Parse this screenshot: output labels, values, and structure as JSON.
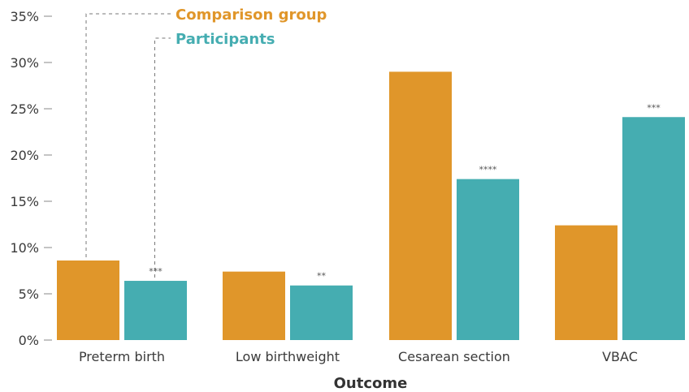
{
  "chart_data": {
    "type": "bar",
    "title": "",
    "xlabel": "Outcome",
    "ylabel": "",
    "ylim": [
      0,
      35
    ],
    "ytick_step": 5,
    "ytick_suffix": "%",
    "grid": false,
    "legend_placement": "top-left",
    "categories": [
      "Preterm birth",
      "Low birthweight",
      "Cesarean section",
      "VBAC"
    ],
    "series": [
      {
        "name": "Comparison group",
        "color": "#E0962A",
        "values": [
          8.6,
          7.4,
          29.0,
          12.4
        ]
      },
      {
        "name": "Participants",
        "color": "#45ADB1",
        "values": [
          6.4,
          5.9,
          17.4,
          24.1
        ]
      }
    ],
    "significance": [
      "***",
      "**",
      "****",
      "***"
    ]
  }
}
